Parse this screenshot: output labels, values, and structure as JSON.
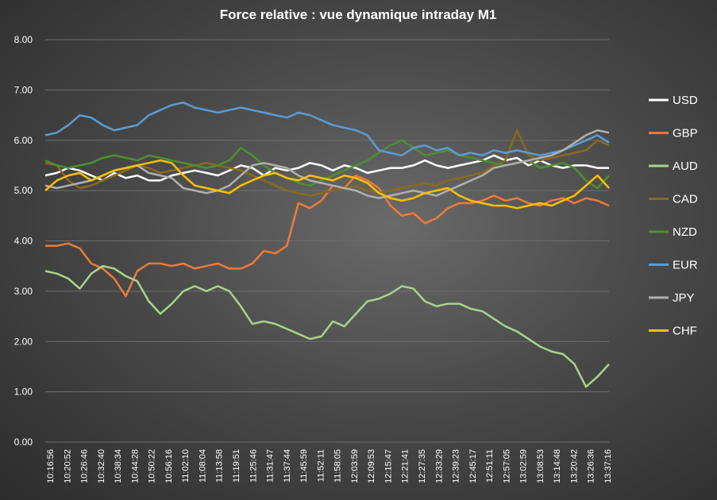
{
  "chart_data": {
    "type": "line",
    "title": "Force relative  : vue dynamique  intraday  M1",
    "xlabel": "",
    "ylabel": "",
    "ylim": [
      0,
      8
    ],
    "yticks": [
      "0.00",
      "1.00",
      "2.00",
      "3.00",
      "4.00",
      "5.00",
      "6.00",
      "7.00",
      "8.00"
    ],
    "x_tick_labels": [
      "10:16:56",
      "10:20:52",
      "10:26:46",
      "10:32:40",
      "10:38:34",
      "10:44:28",
      "10:50:22",
      "10:56:16",
      "11:02:10",
      "11:08:04",
      "11:13:58",
      "11:19:51",
      "11:25:46",
      "11:31:47",
      "11:37:44",
      "11:45:59",
      "11:52:11",
      "11:58:05",
      "12:03:59",
      "12:09:53",
      "12:15:47",
      "12:21:41",
      "12:27:35",
      "12:33:29",
      "12:39:23",
      "12:45:17",
      "12:51:11",
      "12:57:05",
      "13:02:59",
      "13:08:53",
      "13:14:48",
      "13:20:42",
      "13:26:36",
      "13:37:16"
    ],
    "grid": true,
    "legend_position": "right",
    "series": [
      {
        "name": "USD",
        "color": "#ffffff",
        "values": [
          5.3,
          5.35,
          5.45,
          5.4,
          5.3,
          5.2,
          5.35,
          5.25,
          5.3,
          5.2,
          5.2,
          5.3,
          5.35,
          5.4,
          5.35,
          5.3,
          5.4,
          5.5,
          5.45,
          5.3,
          5.45,
          5.4,
          5.45,
          5.55,
          5.5,
          5.4,
          5.5,
          5.45,
          5.35,
          5.4,
          5.45,
          5.45,
          5.5,
          5.6,
          5.5,
          5.45,
          5.5,
          5.55,
          5.6,
          5.7,
          5.6,
          5.65,
          5.5,
          5.6,
          5.5,
          5.45,
          5.5,
          5.5,
          5.45,
          5.45
        ]
      },
      {
        "name": "GBP",
        "color": "#f07a38",
        "values": [
          3.9,
          3.9,
          3.95,
          3.85,
          3.55,
          3.45,
          3.25,
          2.9,
          3.4,
          3.55,
          3.55,
          3.5,
          3.55,
          3.45,
          3.5,
          3.55,
          3.45,
          3.45,
          3.55,
          3.8,
          3.75,
          3.9,
          4.75,
          4.65,
          4.8,
          5.1,
          5.05,
          5.3,
          5.2,
          5.05,
          4.7,
          4.5,
          4.55,
          4.35,
          4.45,
          4.65,
          4.75,
          4.75,
          4.8,
          4.9,
          4.8,
          4.85,
          4.75,
          4.7,
          4.8,
          4.85,
          4.75,
          4.85,
          4.8,
          4.7
        ]
      },
      {
        "name": "AUD",
        "color": "#a6d48a",
        "values": [
          3.4,
          3.35,
          3.25,
          3.05,
          3.35,
          3.5,
          3.45,
          3.3,
          3.2,
          2.8,
          2.55,
          2.75,
          3.0,
          3.1,
          3.0,
          3.1,
          3.0,
          2.7,
          2.35,
          2.4,
          2.35,
          2.25,
          2.15,
          2.05,
          2.1,
          2.4,
          2.3,
          2.55,
          2.8,
          2.85,
          2.95,
          3.1,
          3.05,
          2.8,
          2.7,
          2.75,
          2.75,
          2.65,
          2.6,
          2.45,
          2.3,
          2.2,
          2.05,
          1.9,
          1.8,
          1.75,
          1.55,
          1.1,
          1.3,
          1.55
        ]
      },
      {
        "name": "CAD",
        "color": "#8a6a1e",
        "values": [
          5.55,
          5.5,
          5.2,
          5.05,
          5.1,
          5.2,
          5.3,
          5.4,
          5.5,
          5.45,
          5.35,
          5.4,
          5.45,
          5.5,
          5.55,
          5.5,
          5.45,
          5.4,
          5.3,
          5.2,
          5.1,
          5.0,
          4.95,
          4.9,
          4.95,
          5.0,
          5.05,
          5.1,
          5.0,
          4.95,
          5.0,
          5.05,
          5.1,
          5.15,
          5.1,
          5.2,
          5.25,
          5.3,
          5.35,
          5.5,
          5.6,
          6.2,
          5.7,
          5.6,
          5.65,
          5.7,
          5.75,
          5.8,
          6.0,
          5.9
        ]
      },
      {
        "name": "NZD",
        "color": "#4f8f2e",
        "values": [
          5.6,
          5.5,
          5.45,
          5.5,
          5.55,
          5.65,
          5.7,
          5.65,
          5.6,
          5.7,
          5.65,
          5.6,
          5.55,
          5.5,
          5.45,
          5.5,
          5.6,
          5.85,
          5.7,
          5.5,
          5.35,
          5.25,
          5.15,
          5.1,
          5.2,
          5.3,
          5.4,
          5.5,
          5.6,
          5.75,
          5.9,
          6.0,
          5.85,
          5.7,
          5.75,
          5.8,
          5.7,
          5.65,
          5.6,
          5.55,
          5.5,
          5.55,
          5.6,
          5.45,
          5.5,
          5.55,
          5.45,
          5.2,
          5.05,
          5.3
        ]
      },
      {
        "name": "EUR",
        "color": "#5b9bd5",
        "values": [
          6.1,
          6.15,
          6.3,
          6.5,
          6.45,
          6.3,
          6.2,
          6.25,
          6.3,
          6.5,
          6.6,
          6.7,
          6.75,
          6.65,
          6.6,
          6.55,
          6.6,
          6.65,
          6.6,
          6.55,
          6.5,
          6.45,
          6.55,
          6.5,
          6.4,
          6.3,
          6.25,
          6.2,
          6.1,
          5.8,
          5.75,
          5.7,
          5.85,
          5.9,
          5.8,
          5.85,
          5.7,
          5.75,
          5.7,
          5.8,
          5.75,
          5.8,
          5.75,
          5.7,
          5.75,
          5.8,
          5.9,
          6.0,
          6.1,
          5.95
        ]
      },
      {
        "name": "JPY",
        "color": "#b0b0b0",
        "values": [
          5.1,
          5.05,
          5.1,
          5.15,
          5.2,
          5.3,
          5.4,
          5.45,
          5.5,
          5.35,
          5.3,
          5.25,
          5.05,
          5.0,
          4.95,
          5.0,
          5.1,
          5.3,
          5.5,
          5.55,
          5.5,
          5.45,
          5.3,
          5.2,
          5.15,
          5.1,
          5.05,
          5.0,
          4.9,
          4.85,
          4.9,
          4.95,
          5.0,
          4.95,
          4.9,
          5.0,
          5.1,
          5.2,
          5.3,
          5.45,
          5.5,
          5.55,
          5.6,
          5.65,
          5.7,
          5.8,
          5.95,
          6.1,
          6.2,
          6.15
        ]
      },
      {
        "name": "CHF",
        "color": "#ffc000",
        "values": [
          5.0,
          5.2,
          5.3,
          5.35,
          5.2,
          5.3,
          5.4,
          5.45,
          5.5,
          5.55,
          5.6,
          5.55,
          5.3,
          5.1,
          5.05,
          5.0,
          4.95,
          5.1,
          5.2,
          5.3,
          5.35,
          5.25,
          5.2,
          5.3,
          5.25,
          5.2,
          5.3,
          5.25,
          5.15,
          4.95,
          4.85,
          4.8,
          4.85,
          4.95,
          5.0,
          5.05,
          4.9,
          4.8,
          4.75,
          4.7,
          4.7,
          4.65,
          4.7,
          4.75,
          4.7,
          4.8,
          4.9,
          5.1,
          5.3,
          5.05
        ]
      }
    ]
  }
}
